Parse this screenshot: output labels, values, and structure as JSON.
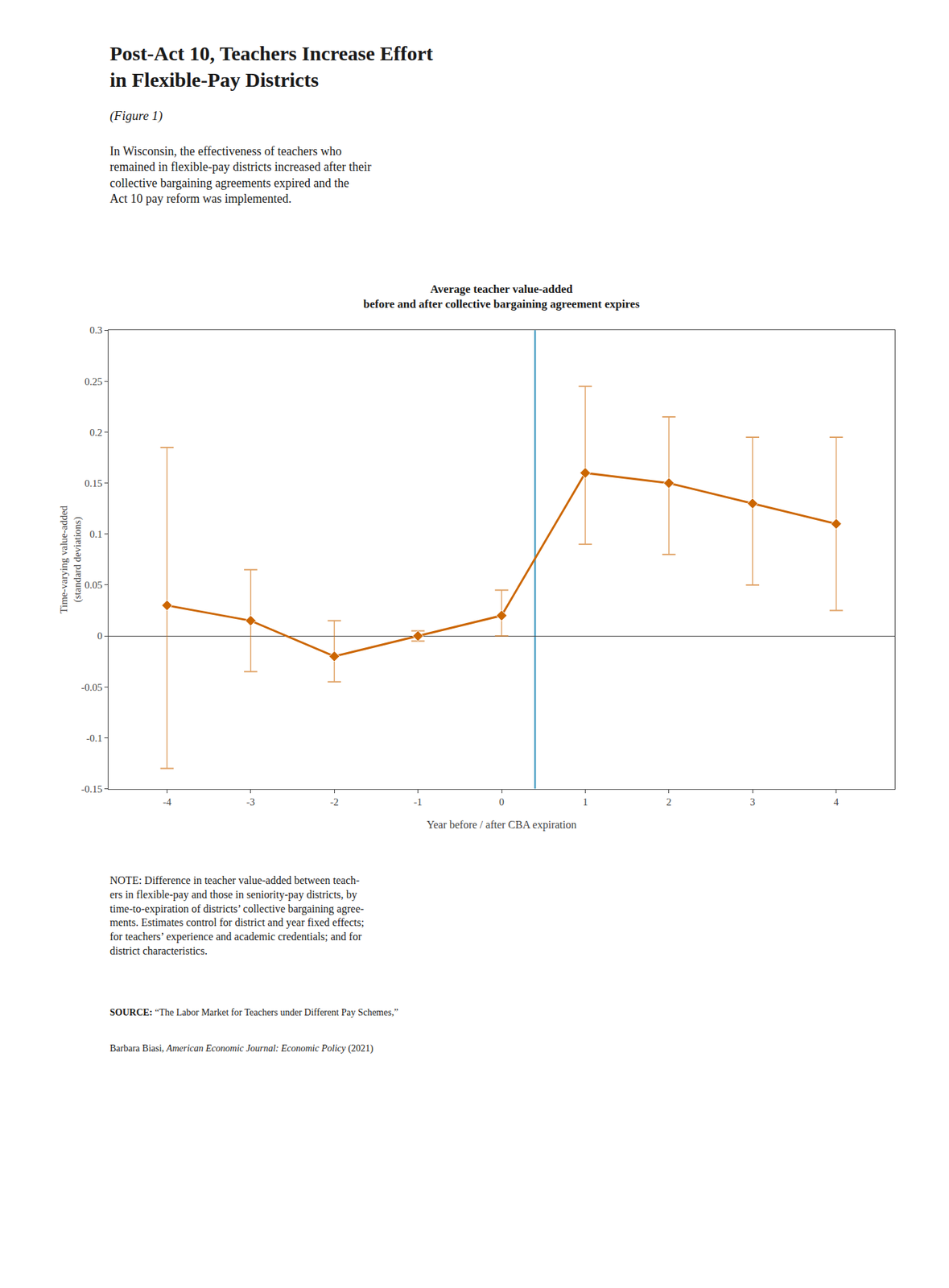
{
  "chart_data": {
    "type": "line",
    "title": "Average teacher value-added\nbefore and after collective bargaining agreement expires",
    "xlabel": "Year before / after CBA expiration",
    "ylabel": "Time-varying value-added\n(standard deviations)",
    "x": [
      -4,
      -3,
      -2,
      -1,
      0,
      1,
      2,
      3,
      4
    ],
    "values": [
      0.03,
      0.015,
      -0.02,
      0.0,
      0.02,
      0.16,
      0.15,
      0.13,
      0.11
    ],
    "y_upper": [
      0.185,
      0.065,
      0.015,
      0.005,
      0.045,
      0.245,
      0.215,
      0.195,
      0.195
    ],
    "y_lower": [
      -0.13,
      -0.035,
      -0.045,
      -0.005,
      0.0,
      0.09,
      0.08,
      0.05,
      0.025
    ],
    "color": "#CC6600",
    "marker": "diamond",
    "xlim": [
      -4.7,
      4.7
    ],
    "xticks": [
      -4,
      -3,
      -2,
      -1,
      0,
      1,
      2,
      3,
      4
    ],
    "ylim": [
      -0.15,
      0.3
    ],
    "yticks": [
      -0.15,
      -0.1,
      -0.05,
      0,
      0.05,
      0.1,
      0.15,
      0.2,
      0.25,
      0.3
    ],
    "grid": false,
    "vline": {
      "x": 0.4,
      "color": "#4a9fc4"
    },
    "annotations": [
      "Post-Act 10, Teachers Increase Effort\nin Flexible-Pay Districts",
      "(Figure 1)",
      "In Wisconsin, the effectiveness of teachers who\nremained in flexible-pay districts increased after their\ncollective bargaining agreements expired and the\nAct 10 pay reform was implemented.",
      "NOTE: Difference in teacher value-added between teach-\ners in flexible-pay and those in seniority-pay districts, by\ntime-to-expiration of districts’ collective bargaining agree-\nments. Estimates control for district and year fixed effects;\nfor teachers’ experience and academic credentials; and for\ndistrict characteristics.",
      [
        "SOURCE:",
        " “The Labor Market for Teachers under Different Pay Schemes,”"
      ],
      [
        "Barbara Biasi, ",
        "American Economic Journal: Economic Policy",
        " (2021)"
      ]
    ]
  }
}
